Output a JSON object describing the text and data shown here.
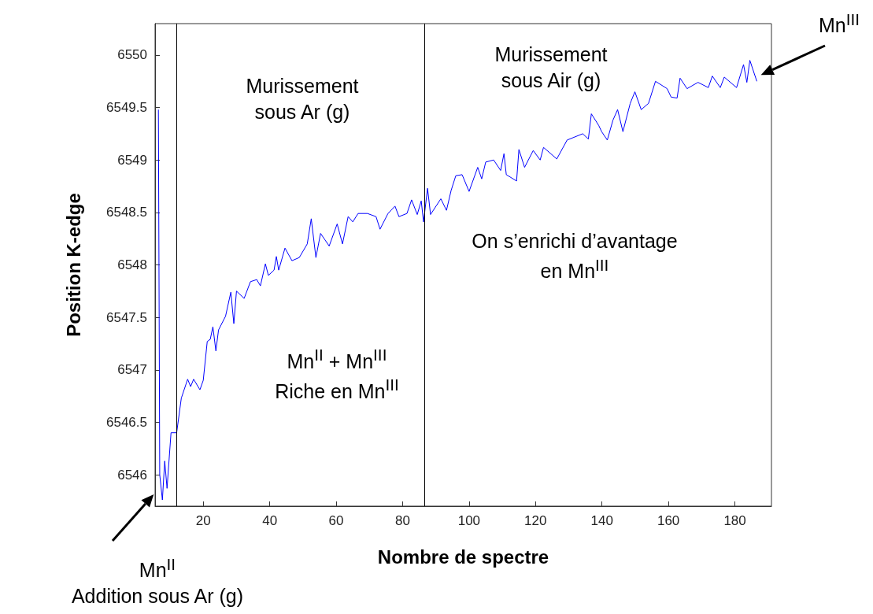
{
  "chart_data": {
    "type": "line",
    "xlabel": "Nombre de spectre",
    "ylabel": "Position K-edge",
    "xlim": [
      5.5,
      191
    ],
    "ylim": [
      6545.7,
      6550.3
    ],
    "xticks": [
      20,
      40,
      60,
      80,
      100,
      120,
      140,
      160,
      180
    ],
    "yticks": [
      6546,
      6546.5,
      6547,
      6547.5,
      6548,
      6548.5,
      6549,
      6549.5,
      6550
    ],
    "grid": false,
    "marker": "none",
    "line_style": "solid",
    "series": [
      {
        "color": "#0000ff",
        "x": [
          6.5,
          6.9,
          7.7,
          8.4,
          9.1,
          10.3,
          12.0,
          13.4,
          15.3,
          16.2,
          17.1,
          19.0,
          20.0,
          21.2,
          22.1,
          22.9,
          23.8,
          24.6,
          26.7,
          28.3,
          29.2,
          30.0,
          32.3,
          34.2,
          36.1,
          37.2,
          38.7,
          39.6,
          41.3,
          42.0,
          42.7,
          44.6,
          46.7,
          48.9,
          51.3,
          52.5,
          53.9,
          55.3,
          57.9,
          60.3,
          61.9,
          63.6,
          65.0,
          66.6,
          69.4,
          72.0,
          73.2,
          75.6,
          77.7,
          78.9,
          81.3,
          82.7,
          84.4,
          85.6,
          86.3,
          87.5,
          88.4,
          91.5,
          93.2,
          94.6,
          96.0,
          97.9,
          100.0,
          102.6,
          103.8,
          105.0,
          107.4,
          109.5,
          110.5,
          111.2,
          114.3,
          115.0,
          116.7,
          119.3,
          121.4,
          122.4,
          126.4,
          129.5,
          134.2,
          135.9,
          136.8,
          139.0,
          139.9,
          141.6,
          143.3,
          144.7,
          146.3,
          148.5,
          149.9,
          151.8,
          154.0,
          156.1,
          159.6,
          160.8,
          162.6,
          163.5,
          165.6,
          168.9,
          172.0,
          173.2,
          175.6,
          176.8,
          180.5,
          182.6,
          183.6,
          184.5,
          186.6
        ],
        "values": [
          6549.48,
          6546.0,
          6545.76,
          6546.13,
          6545.87,
          6546.4,
          6546.4,
          6546.73,
          6546.91,
          6546.84,
          6546.91,
          6546.81,
          6546.9,
          6547.27,
          6547.29,
          6547.41,
          6547.18,
          6547.38,
          6547.51,
          6547.74,
          6547.44,
          6547.75,
          6547.68,
          6547.84,
          6547.86,
          6547.8,
          6548.01,
          6547.9,
          6547.95,
          6548.08,
          6547.95,
          6548.16,
          6548.04,
          6548.07,
          6548.2,
          6548.44,
          6548.07,
          6548.3,
          6548.18,
          6548.39,
          6548.2,
          6548.46,
          6548.41,
          6548.49,
          6548.49,
          6548.46,
          6548.34,
          6548.49,
          6548.56,
          6548.46,
          6548.49,
          6548.62,
          6548.48,
          6548.61,
          6548.41,
          6548.73,
          6548.48,
          6548.63,
          6548.52,
          6548.71,
          6548.85,
          6548.86,
          6548.7,
          6548.93,
          6548.82,
          6548.98,
          6549.0,
          6548.9,
          6549.06,
          6548.86,
          6548.8,
          6549.1,
          6548.93,
          6549.09,
          6549.0,
          6549.12,
          6549.01,
          6549.19,
          6549.25,
          6549.2,
          6549.44,
          6549.33,
          6549.27,
          6549.19,
          6549.38,
          6549.48,
          6549.27,
          6549.54,
          6549.65,
          6549.48,
          6549.54,
          6549.75,
          6549.68,
          6549.6,
          6549.59,
          6549.78,
          6549.68,
          6549.74,
          6549.69,
          6549.8,
          6549.69,
          6549.79,
          6549.69,
          6549.91,
          6549.74,
          6549.95,
          6549.75
        ]
      }
    ],
    "ref_lines": [
      {
        "axis": "x",
        "value": 12.0,
        "color": "#000000"
      },
      {
        "axis": "x",
        "value": 86.6,
        "color": "#000000"
      }
    ],
    "annotations": [
      "Murissement\nsous Ar (g)",
      "Murissement\nsous Air (g)",
      "Mn$^{II}$ + Mn$^{III}$\nRiche en Mn$^{III}$",
      "On s’enrichi d’avantage\nen Mn$^{III}$",
      "Mn$^{III}$",
      "Mn$^{II}$\nAddition sous Ar (g)"
    ]
  }
}
